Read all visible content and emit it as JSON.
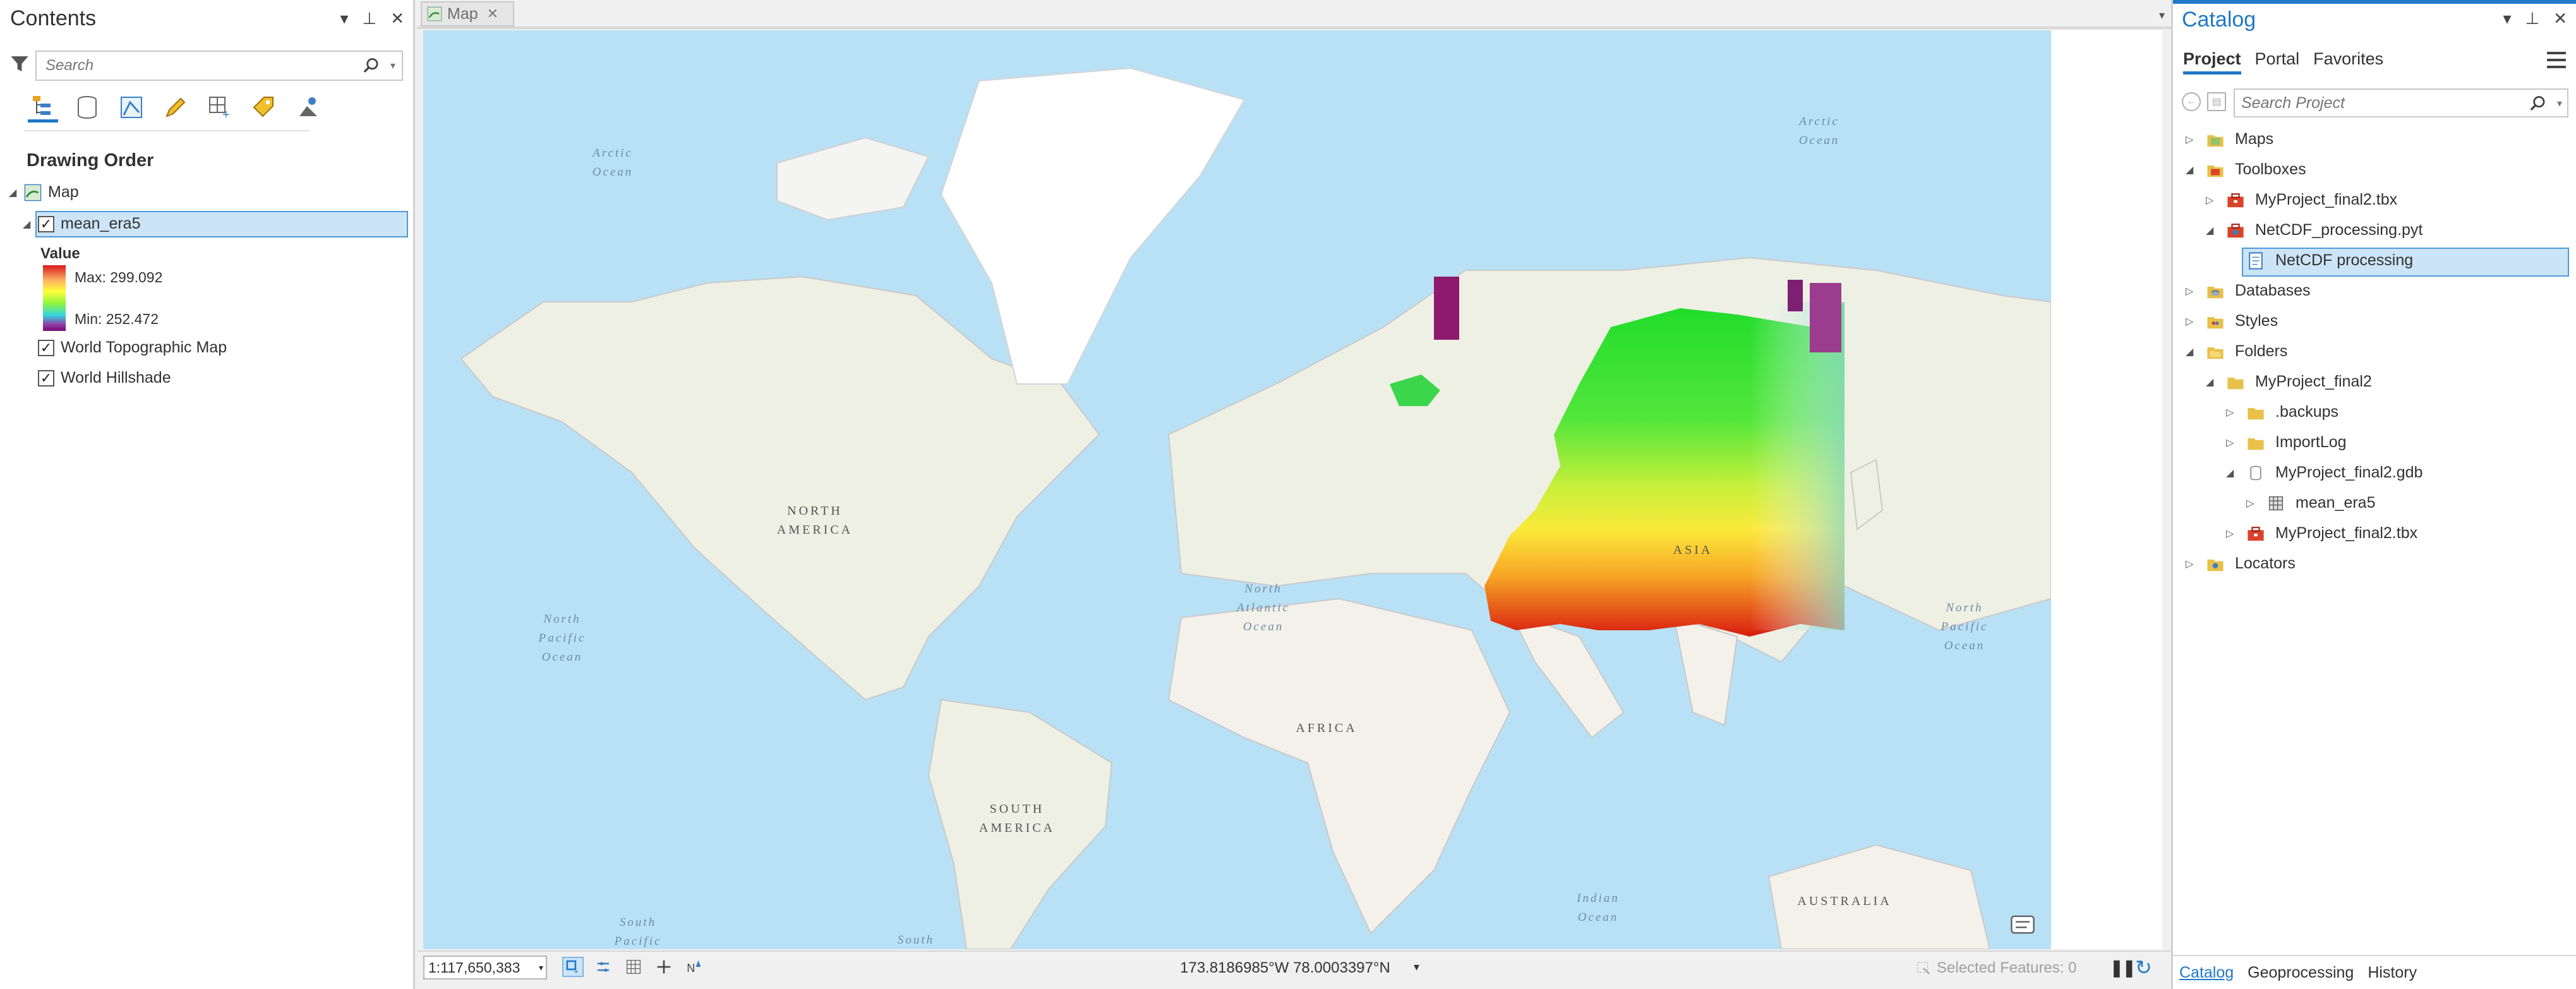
{
  "contents": {
    "title": "Contents",
    "search_placeholder": "Search",
    "drawing_order_label": "Drawing Order",
    "map_label": "Map",
    "layers": [
      {
        "name": "mean_era5",
        "checked": true
      },
      {
        "name": "World Topographic Map",
        "checked": true
      },
      {
        "name": "World Hillshade",
        "checked": true
      }
    ],
    "legend": {
      "title": "Value",
      "max_label": "Max: 299.092",
      "min_label": "Min: 252.472"
    }
  },
  "map_view": {
    "tab_label": "Map",
    "labels": {
      "arctic_left": "Arctic\nOcean",
      "arctic_right": "Arctic\nOcean",
      "north_america": "NORTH\nAMERICA",
      "north_atlantic": "North\nAtlantic\nOcean",
      "north_pacific_left": "North\nPacific\nOcean",
      "north_pacific_right": "North\nPacific\nOcean",
      "asia": "ASIA",
      "africa": "AFRICA",
      "south_america": "SOUTH\nAMERICA",
      "indian_ocean": "Indian\nOcean",
      "australia": "AUSTRALIA",
      "south_pacific": "South\nPacific",
      "south": "South"
    },
    "status": {
      "scale": "1:117,650,383",
      "coordinates": "173.8186985°W 78.0003397°N",
      "selected_features": "Selected Features: 0"
    }
  },
  "catalog": {
    "title": "Catalog",
    "tabs": [
      "Project",
      "Portal",
      "Favorites"
    ],
    "search_placeholder": "Search Project",
    "tree": [
      {
        "label": "Maps",
        "icon": "maps-icon"
      },
      {
        "label": "Toolboxes",
        "icon": "toolbox-icon"
      },
      {
        "label": "MyProject_final2.tbx",
        "icon": "toolbox-file-icon"
      },
      {
        "label": "NetCDF_processing.pyt",
        "icon": "python-toolbox-icon"
      },
      {
        "label": "NetCDF processing",
        "icon": "script-tool-icon"
      },
      {
        "label": "Databases",
        "icon": "databases-icon"
      },
      {
        "label": "Styles",
        "icon": "styles-icon"
      },
      {
        "label": "Folders",
        "icon": "folders-icon"
      },
      {
        "label": "MyProject_final2",
        "icon": "folder-icon"
      },
      {
        "label": ".backups",
        "icon": "folder-icon"
      },
      {
        "label": "ImportLog",
        "icon": "folder-icon"
      },
      {
        "label": "MyProject_final2.gdb",
        "icon": "geodatabase-icon"
      },
      {
        "label": "mean_era5",
        "icon": "raster-icon"
      },
      {
        "label": "MyProject_final2.tbx",
        "icon": "toolbox-file-icon"
      },
      {
        "label": "Locators",
        "icon": "locators-icon"
      }
    ],
    "bottom_tabs": [
      "Catalog",
      "Geoprocessing",
      "History"
    ]
  },
  "colors": {
    "accent": "#1f78c8",
    "selection": "#cce4f7",
    "ocean": "#b9e1f5",
    "land": "#f4f1ea"
  }
}
